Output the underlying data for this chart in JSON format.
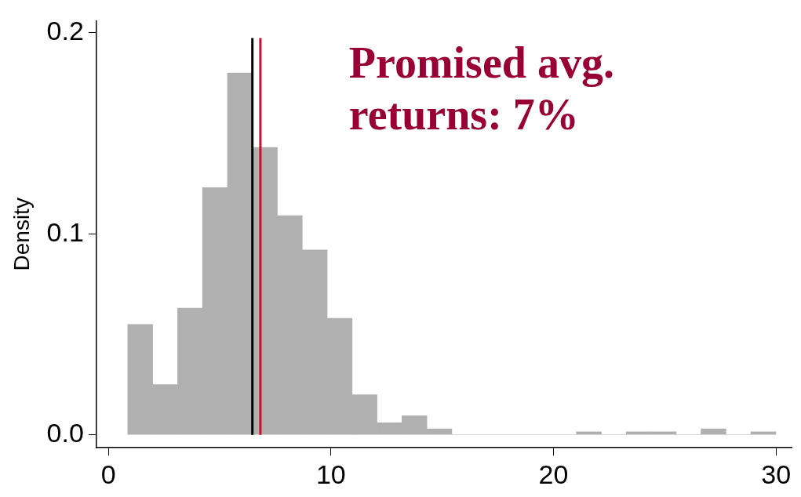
{
  "chart_data": {
    "type": "histogram",
    "ylabel": "Density",
    "bins": [
      0.87,
      1.99,
      3.11,
      4.23,
      5.35,
      6.47,
      7.59,
      8.71,
      9.83,
      10.95,
      12.07,
      13.19,
      14.31,
      15.43,
      16.55,
      17.67,
      18.79,
      19.91,
      21.03,
      22.15,
      23.27,
      24.39,
      25.51,
      26.63,
      27.75,
      28.87,
      29.99
    ],
    "values": [
      0.055,
      0.025,
      0.063,
      0.123,
      0.18,
      0.143,
      0.109,
      0.092,
      0.058,
      0.02,
      0.006,
      0.0095,
      0.003,
      0,
      0,
      0,
      0,
      0,
      0.0015,
      0,
      0.0015,
      0.0015,
      0,
      0.003,
      0,
      0.0015
    ],
    "color": "#b0b0b0",
    "xlim": [
      -0.54,
      30.7
    ],
    "xticks": [
      0,
      10,
      20,
      30
    ],
    "ylim": [
      -0.0064,
      0.206
    ],
    "yticks": [
      {
        "value": 0,
        "label": "0.0"
      },
      {
        "value": 0.1,
        "label": "0.1"
      },
      {
        "value": 0.2,
        "label": "0.2"
      }
    ],
    "ref_lines": [
      {
        "axis": "x",
        "value": 6.47,
        "color": "#000000"
      },
      {
        "axis": "x",
        "value": 6.83,
        "color": "#c8102e"
      }
    ],
    "annotations": [
      "Promised avg. returns: 7%"
    ],
    "grid": false,
    "legend": false
  }
}
